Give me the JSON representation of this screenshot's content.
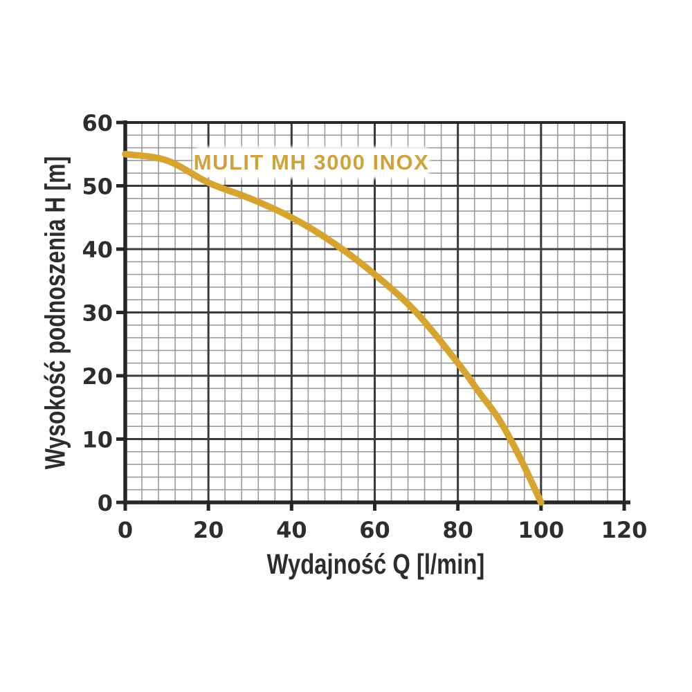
{
  "chart_data": {
    "type": "line",
    "title": "MULIT MH 3000 INOX",
    "xlabel": "Wydajność Q [l/min]",
    "ylabel": "Wysokość podnoszenia H [m]",
    "xlim": [
      0,
      120
    ],
    "ylim": [
      0,
      60
    ],
    "x_major_ticks": [
      0,
      20,
      40,
      60,
      80,
      100,
      120
    ],
    "y_major_ticks": [
      0,
      10,
      20,
      30,
      40,
      50,
      60
    ],
    "x_minor_step": 4,
    "y_minor_step": 2,
    "grid": "major and minor, all four borders drawn",
    "legend_position": "none",
    "series": [
      {
        "name": "MULIT MH 3000 INOX",
        "x": [
          0,
          10,
          20,
          30,
          40,
          50,
          60,
          70,
          80,
          85,
          90,
          95,
          100
        ],
        "y": [
          55,
          54,
          50.5,
          48,
          45,
          41,
          36,
          30,
          22,
          17.5,
          13,
          7,
          0
        ]
      }
    ],
    "colors": {
      "curve": "#d7a52f",
      "title_text": "#d0a23c",
      "axis_border": "#262626",
      "major_grid": "#3b3b3b",
      "minor_grid": "#9a9a9a",
      "tick_text": "#2d2d2d",
      "background": "#ffffff",
      "title_band": "#ffffff"
    }
  }
}
